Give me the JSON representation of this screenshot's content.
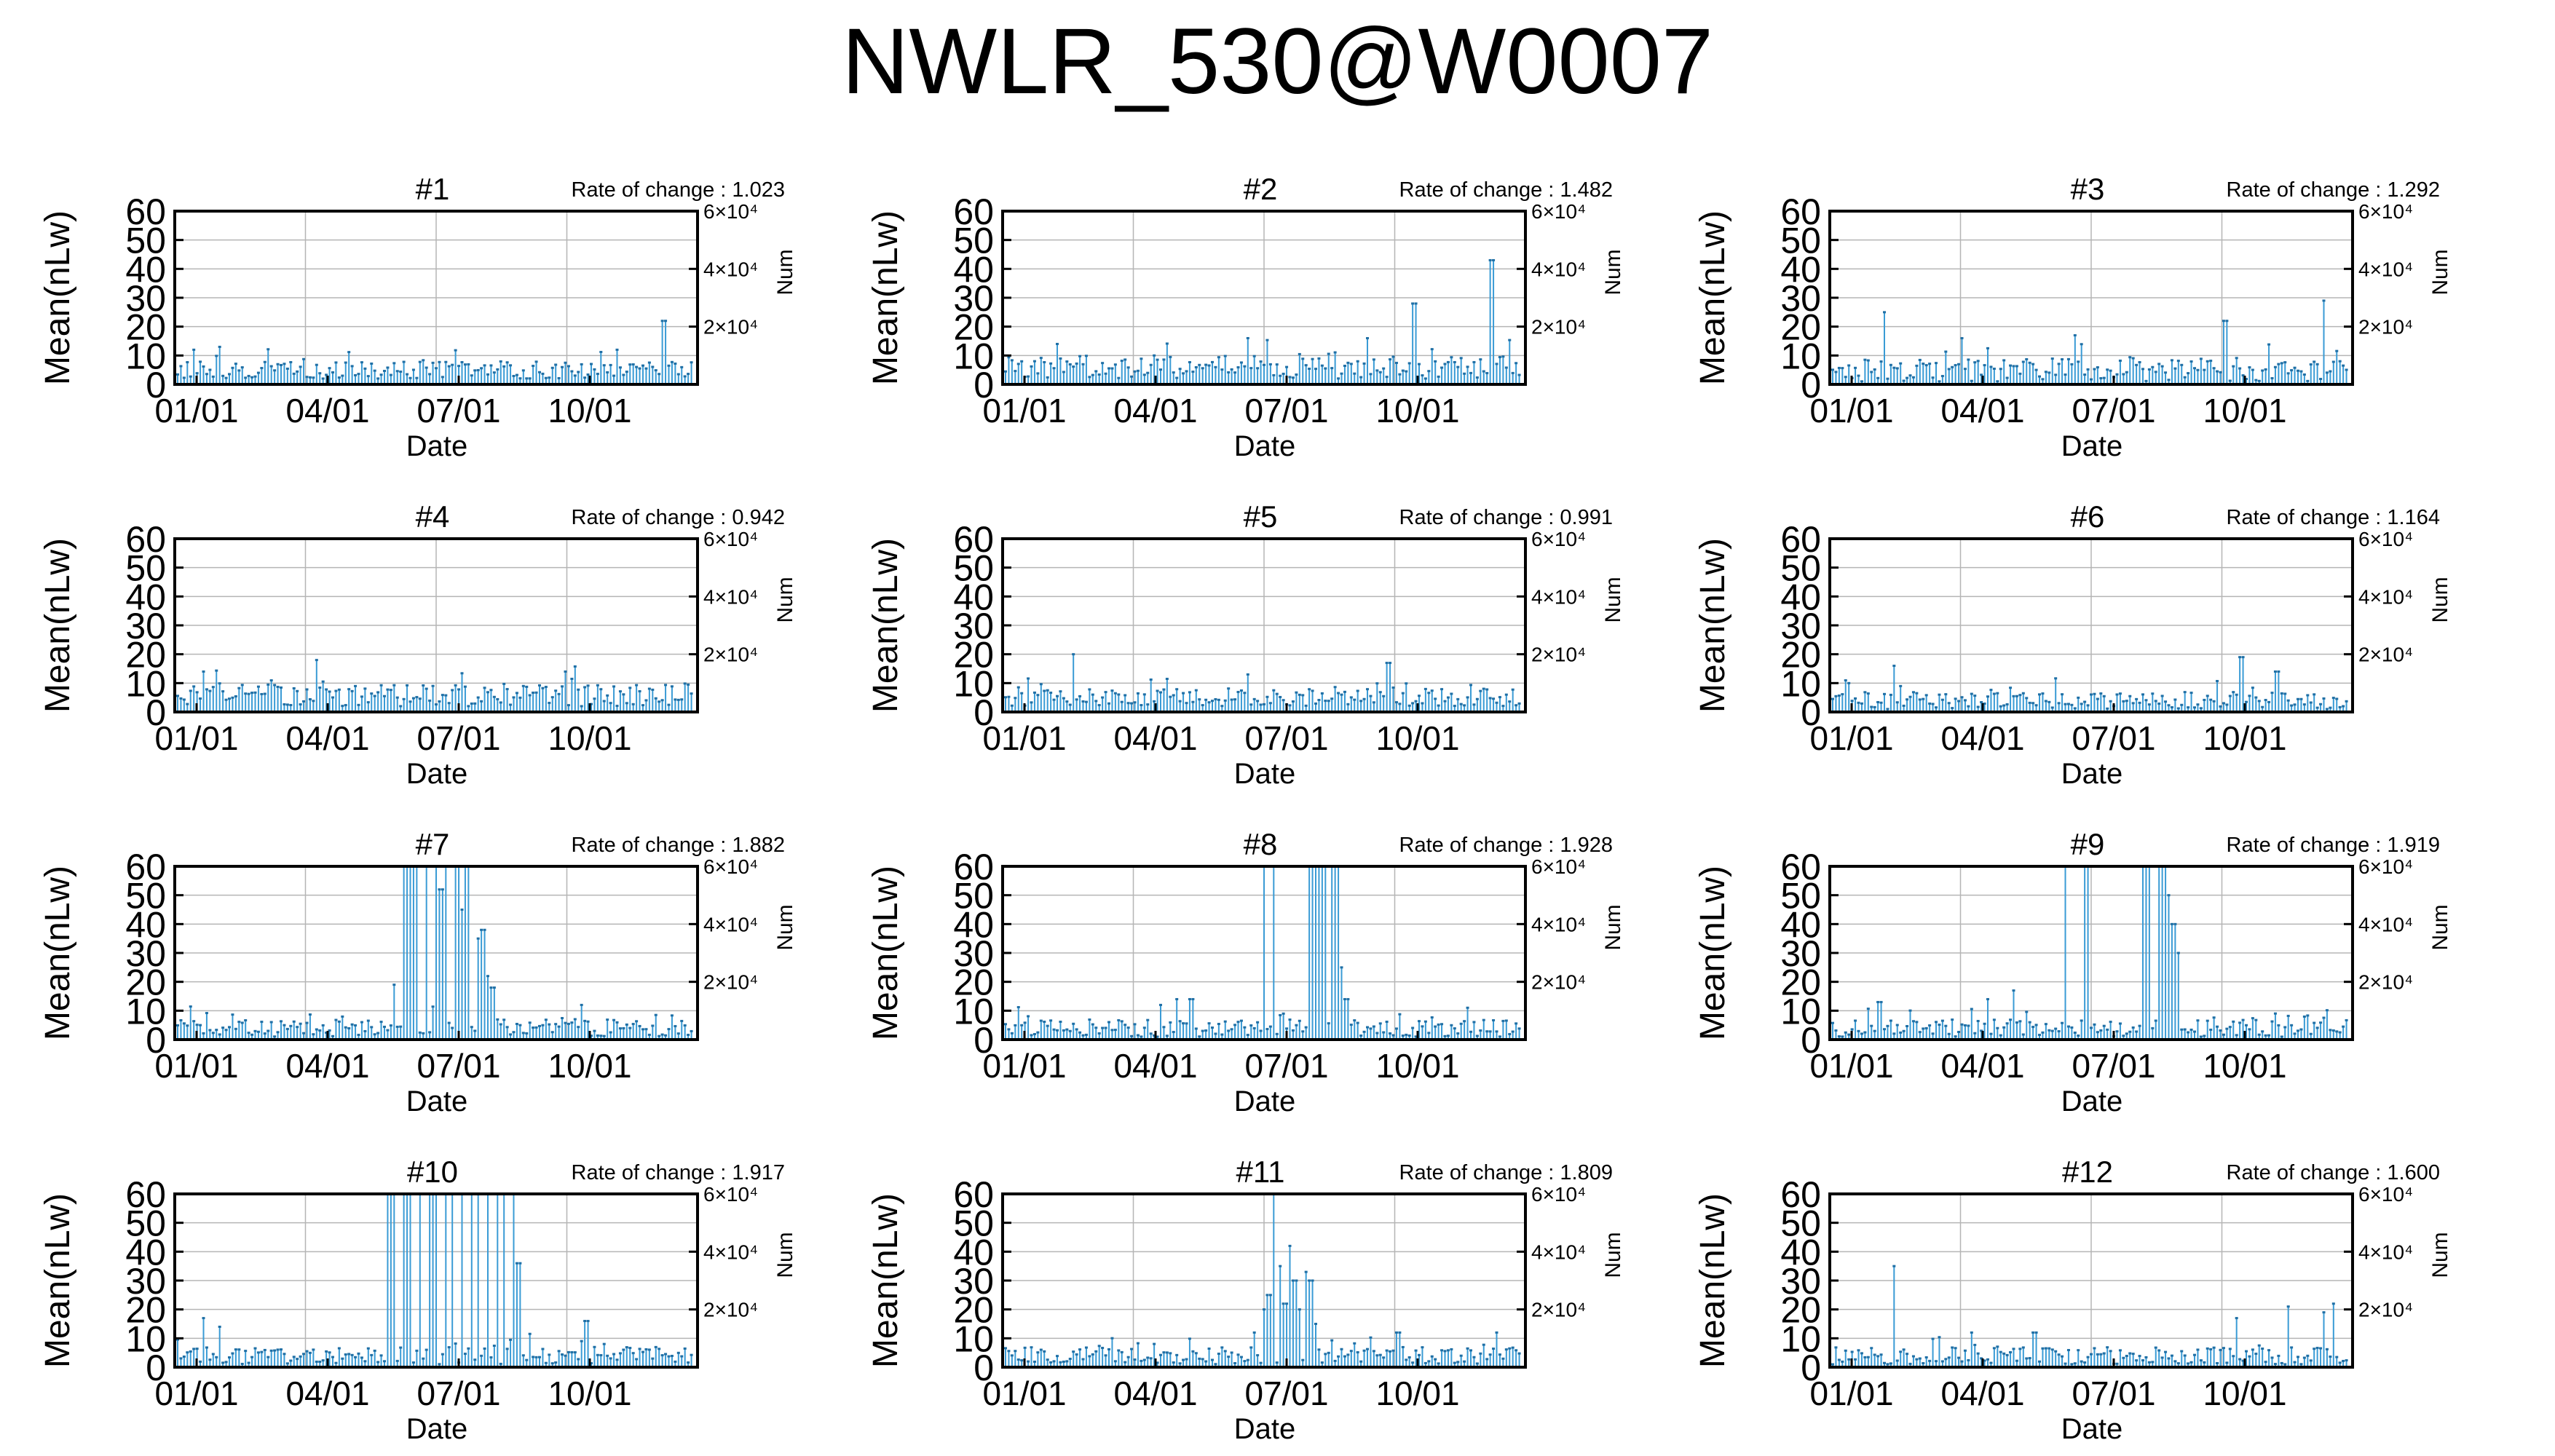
{
  "title": "NWLR_530@W0007",
  "axes": {
    "ylabel": "Mean(nLw)",
    "xlabel": "Date",
    "y2label": "Num",
    "yticks": [
      "0",
      "10",
      "20",
      "30",
      "40",
      "50",
      "60"
    ],
    "y2ticks": [
      "2×10⁴",
      "4×10⁴",
      "6×10⁴"
    ],
    "xticks": [
      "01/01",
      "04/01",
      "07/01",
      "10/01"
    ]
  },
  "colors": {
    "series": "#3a9bd5",
    "grid": "#b5b5b5",
    "frame": "#000000"
  },
  "chart_data": [
    {
      "type": "bar",
      "title": "#1",
      "annotation": "Rate of change : 1.023",
      "ylim": [
        0,
        60
      ],
      "y2lim": [
        0,
        60000
      ],
      "grid": true,
      "profile": {
        "baseline": 5,
        "noise": 3,
        "spikes": [
          [
            0.03,
            12
          ],
          [
            0.08,
            13
          ],
          [
            0.85,
            12
          ],
          [
            0.94,
            22
          ]
        ]
      }
    },
    {
      "type": "bar",
      "title": "#2",
      "annotation": "Rate of change : 1.482",
      "ylim": [
        0,
        60
      ],
      "y2lim": [
        0,
        60000
      ],
      "grid": true,
      "profile": {
        "baseline": 6,
        "noise": 4,
        "spikes": [
          [
            0.1,
            14
          ],
          [
            0.7,
            16
          ],
          [
            0.79,
            28
          ],
          [
            0.94,
            43
          ]
        ]
      }
    },
    {
      "type": "bar",
      "title": "#3",
      "annotation": "Rate of change : 1.292",
      "ylim": [
        0,
        60
      ],
      "y2lim": [
        0,
        60000
      ],
      "grid": true,
      "profile": {
        "baseline": 5,
        "noise": 4,
        "spikes": [
          [
            0.1,
            25
          ],
          [
            0.25,
            16
          ],
          [
            0.47,
            17
          ],
          [
            0.76,
            22
          ],
          [
            0.95,
            29
          ]
        ]
      }
    },
    {
      "type": "bar",
      "title": "#4",
      "annotation": "Rate of change : 0.942",
      "ylim": [
        0,
        60
      ],
      "y2lim": [
        0,
        60000
      ],
      "grid": true,
      "profile": {
        "baseline": 6,
        "noise": 4,
        "spikes": [
          [
            0.05,
            14
          ],
          [
            0.27,
            18
          ],
          [
            0.75,
            14
          ]
        ]
      }
    },
    {
      "type": "bar",
      "title": "#5",
      "annotation": "Rate of change : 0.991",
      "ylim": [
        0,
        60
      ],
      "y2lim": [
        0,
        60000
      ],
      "grid": true,
      "profile": {
        "baseline": 5,
        "noise": 3,
        "spikes": [
          [
            0.13,
            20
          ],
          [
            0.47,
            13
          ],
          [
            0.74,
            17
          ]
        ]
      }
    },
    {
      "type": "bar",
      "title": "#6",
      "annotation": "Rate of change : 1.164",
      "ylim": [
        0,
        60
      ],
      "y2lim": [
        0,
        60000
      ],
      "grid": true,
      "profile": {
        "baseline": 4,
        "noise": 3,
        "spikes": [
          [
            0.03,
            10
          ],
          [
            0.12,
            16
          ],
          [
            0.79,
            19
          ],
          [
            0.86,
            14
          ]
        ]
      }
    },
    {
      "type": "bar",
      "title": "#7",
      "annotation": "Rate of change : 1.882",
      "ylim": [
        0,
        60
      ],
      "y2lim": [
        0,
        60000
      ],
      "grid": true,
      "profile": {
        "baseline": 4,
        "noise": 3,
        "spikes": [
          [
            0.42,
            19
          ],
          [
            0.44,
            60
          ],
          [
            0.45,
            60
          ],
          [
            0.46,
            60
          ],
          [
            0.48,
            60
          ],
          [
            0.5,
            60
          ],
          [
            0.51,
            52
          ],
          [
            0.52,
            60
          ],
          [
            0.54,
            60
          ],
          [
            0.55,
            45
          ],
          [
            0.56,
            60
          ],
          [
            0.58,
            35
          ],
          [
            0.59,
            38
          ],
          [
            0.6,
            22
          ],
          [
            0.61,
            18
          ],
          [
            0.78,
            12
          ]
        ]
      }
    },
    {
      "type": "bar",
      "title": "#8",
      "annotation": "Rate of change : 1.928",
      "ylim": [
        0,
        60
      ],
      "y2lim": [
        0,
        60000
      ],
      "grid": true,
      "profile": {
        "baseline": 4,
        "noise": 3,
        "spikes": [
          [
            0.3,
            12
          ],
          [
            0.33,
            14
          ],
          [
            0.36,
            14
          ],
          [
            0.5,
            60
          ],
          [
            0.52,
            60
          ],
          [
            0.59,
            60
          ],
          [
            0.6,
            60
          ],
          [
            0.61,
            60
          ],
          [
            0.62,
            60
          ],
          [
            0.63,
            60
          ],
          [
            0.64,
            60
          ],
          [
            0.65,
            25
          ],
          [
            0.66,
            14
          ]
        ]
      }
    },
    {
      "type": "bar",
      "title": "#9",
      "annotation": "Rate of change : 1.919",
      "ylim": [
        0,
        60
      ],
      "y2lim": [
        0,
        60000
      ],
      "grid": true,
      "profile": {
        "baseline": 4,
        "noise": 3,
        "spikes": [
          [
            0.09,
            13
          ],
          [
            0.3,
            14
          ],
          [
            0.35,
            17
          ],
          [
            0.45,
            60
          ],
          [
            0.49,
            60
          ],
          [
            0.6,
            60
          ],
          [
            0.61,
            60
          ],
          [
            0.63,
            60
          ],
          [
            0.64,
            60
          ],
          [
            0.65,
            50
          ],
          [
            0.66,
            40
          ],
          [
            0.67,
            30
          ]
        ]
      }
    },
    {
      "type": "bar",
      "title": "#10",
      "annotation": "Rate of change : 1.917",
      "ylim": [
        0,
        60
      ],
      "y2lim": [
        0,
        60000
      ],
      "grid": true,
      "profile": {
        "baseline": 4,
        "noise": 3,
        "spikes": [
          [
            0.05,
            17
          ],
          [
            0.08,
            14
          ],
          [
            0.41,
            60
          ],
          [
            0.42,
            60
          ],
          [
            0.44,
            60
          ],
          [
            0.45,
            60
          ],
          [
            0.47,
            60
          ],
          [
            0.49,
            60
          ],
          [
            0.5,
            60
          ],
          [
            0.52,
            60
          ],
          [
            0.53,
            60
          ],
          [
            0.55,
            60
          ],
          [
            0.57,
            60
          ],
          [
            0.58,
            60
          ],
          [
            0.6,
            60
          ],
          [
            0.62,
            60
          ],
          [
            0.63,
            60
          ],
          [
            0.65,
            60
          ],
          [
            0.66,
            36
          ],
          [
            0.79,
            16
          ]
        ]
      }
    },
    {
      "type": "bar",
      "title": "#11",
      "annotation": "Rate of change : 1.809",
      "ylim": [
        0,
        60
      ],
      "y2lim": [
        0,
        60000
      ],
      "grid": true,
      "profile": {
        "baseline": 4,
        "noise": 3,
        "spikes": [
          [
            0.48,
            12
          ],
          [
            0.5,
            20
          ],
          [
            0.51,
            25
          ],
          [
            0.52,
            60
          ],
          [
            0.53,
            35
          ],
          [
            0.54,
            22
          ],
          [
            0.55,
            42
          ],
          [
            0.56,
            30
          ],
          [
            0.57,
            20
          ],
          [
            0.58,
            33
          ],
          [
            0.59,
            30
          ],
          [
            0.6,
            15
          ],
          [
            0.76,
            12
          ],
          [
            0.95,
            12
          ]
        ]
      }
    },
    {
      "type": "bar",
      "title": "#12",
      "annotation": "Rate of change : 1.600",
      "ylim": [
        0,
        60
      ],
      "y2lim": [
        0,
        60000
      ],
      "grid": true,
      "profile": {
        "baseline": 4,
        "noise": 3,
        "spikes": [
          [
            0.12,
            35
          ],
          [
            0.27,
            12
          ],
          [
            0.39,
            12
          ],
          [
            0.78,
            17
          ],
          [
            0.88,
            21
          ],
          [
            0.95,
            19
          ],
          [
            0.97,
            22
          ]
        ]
      }
    }
  ]
}
